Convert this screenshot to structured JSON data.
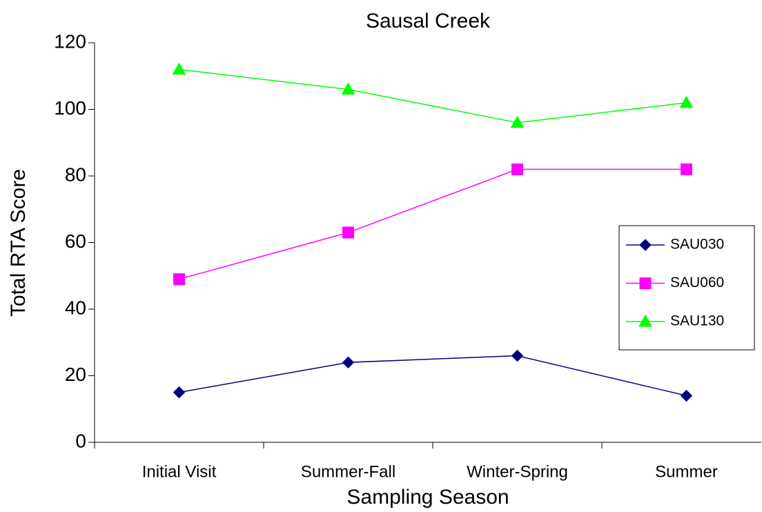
{
  "chart_data": {
    "type": "line",
    "title": "Sausal Creek",
    "x_label": "Sampling Season",
    "y_label": "Total RTA Score",
    "categories": [
      "Initial Visit",
      "Summer-Fall",
      "Winter-Spring",
      "Summer"
    ],
    "series": [
      {
        "name": "SAU030",
        "color": "#000080",
        "marker": "diamond",
        "values": [
          15,
          24,
          26,
          14
        ]
      },
      {
        "name": "SAU060",
        "color": "#ff00ff",
        "marker": "square",
        "values": [
          49,
          63,
          82,
          82
        ]
      },
      {
        "name": "SAU130",
        "color": "#00ff00",
        "marker": "triangle",
        "values": [
          112,
          106,
          96,
          102
        ]
      }
    ],
    "ylim": [
      0,
      120
    ],
    "yticks": [
      0,
      20,
      40,
      60,
      80,
      100,
      120
    ],
    "grid": false,
    "legend": "right"
  }
}
